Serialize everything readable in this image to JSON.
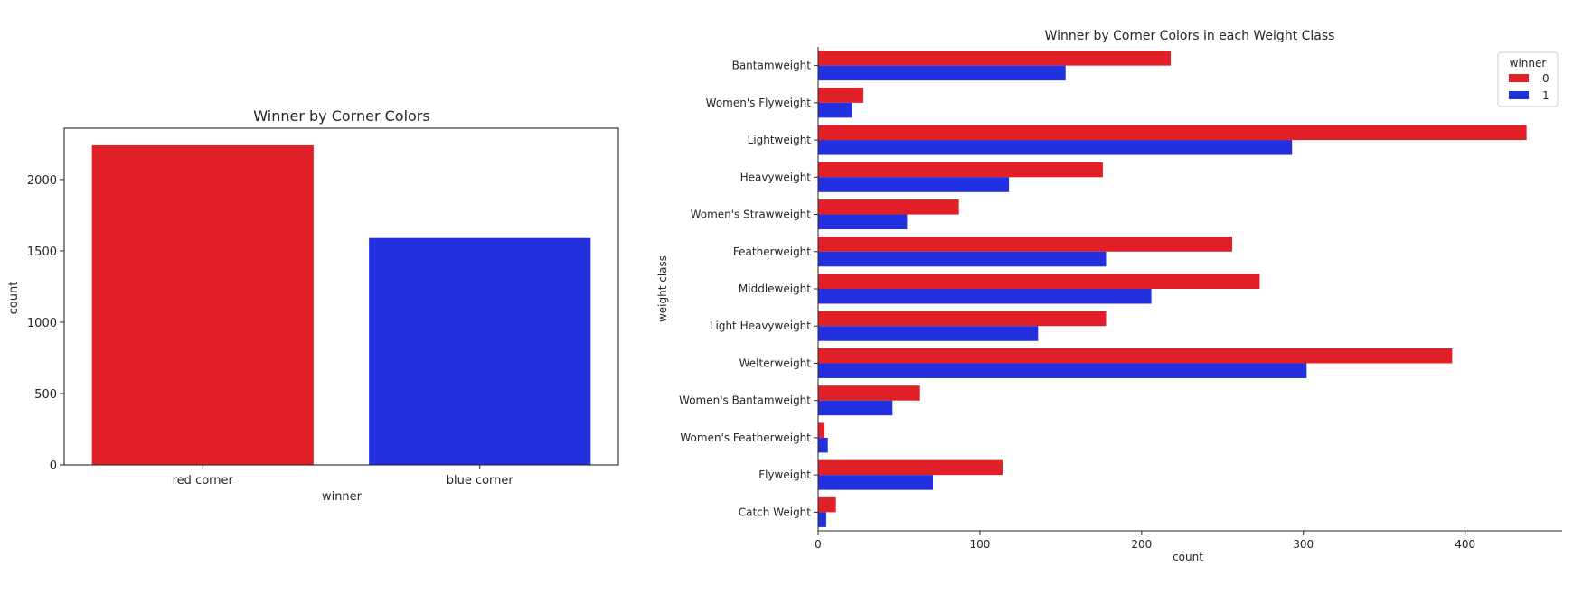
{
  "colors": {
    "red": "#e01f26",
    "blue": "#2230e0"
  },
  "chart_data": [
    {
      "type": "bar",
      "title": "Winner by Corner Colors",
      "xlabel": "winner",
      "ylabel": "count",
      "categories": [
        "red corner",
        "blue corner"
      ],
      "values": [
        2240,
        1590
      ],
      "ylim": [
        0,
        2360
      ],
      "yticks": [
        0,
        500,
        1000,
        1500,
        2000
      ],
      "grid": false
    },
    {
      "type": "bar",
      "orientation": "horizontal",
      "title": "Winner by Corner Colors in each Weight Class",
      "xlabel": "count",
      "ylabel": "weight class",
      "categories": [
        "Bantamweight",
        "Women's Flyweight",
        "Lightweight",
        "Heavyweight",
        "Women's Strawweight",
        "Featherweight",
        "Middleweight",
        "Light Heavyweight",
        "Welterweight",
        "Women's Bantamweight",
        "Women's Featherweight",
        "Flyweight",
        "Catch Weight"
      ],
      "series": [
        {
          "name": "0",
          "values": [
            218,
            28,
            438,
            176,
            87,
            256,
            273,
            178,
            392,
            63,
            4,
            114,
            11
          ]
        },
        {
          "name": "1",
          "values": [
            153,
            21,
            293,
            118,
            55,
            178,
            206,
            136,
            302,
            46,
            6,
            71,
            5
          ]
        }
      ],
      "xlim": [
        0,
        460
      ],
      "xticks": [
        0,
        100,
        200,
        300,
        400
      ],
      "legend": {
        "title": "winner",
        "position": "top-right"
      },
      "grid": false
    }
  ]
}
